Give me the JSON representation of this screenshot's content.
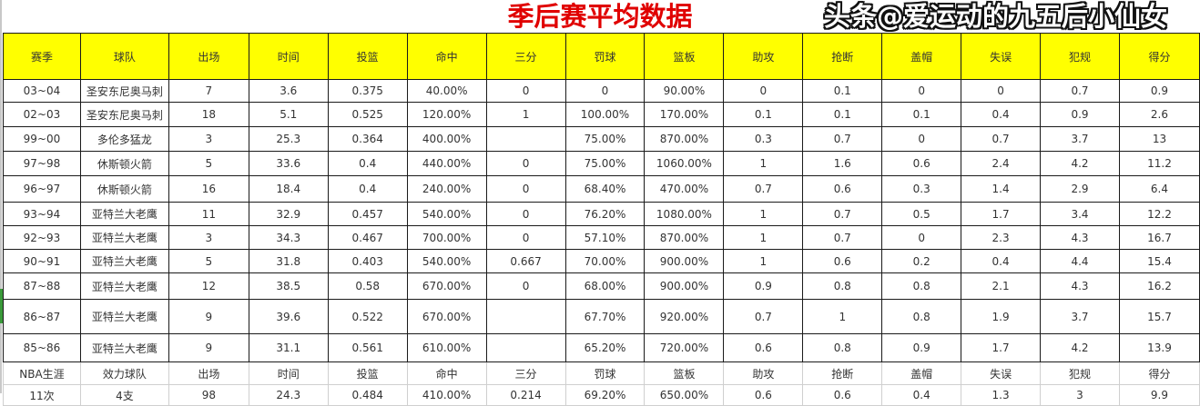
{
  "title": "季后赛平均数据",
  "headers": [
    "赛季",
    "球队",
    "出场",
    "时间",
    "投篮",
    "命中",
    "三分",
    "罚球",
    "篮板",
    "助攻",
    "抢断",
    "盖帽",
    "失误",
    "犯规",
    "得分"
  ],
  "rows": [
    [
      "03~04",
      "圣安东尼奥马刺",
      "7",
      "3.6",
      "0.375",
      "40.00%",
      "0",
      "0",
      "90.00%",
      "0",
      "0.1",
      "0",
      "0",
      "0.7",
      "0.9"
    ],
    [
      "02~03",
      "圣安东尼奥马刺",
      "18",
      "5.1",
      "0.525",
      "120.00%",
      "1",
      "100.00%",
      "170.00%",
      "0.1",
      "0.1",
      "0.1",
      "0.4",
      "0.9",
      "2.6"
    ],
    [
      "99~00",
      "多伦多猛龙",
      "3",
      "25.3",
      "0.364",
      "400.00%",
      "",
      "75.00%",
      "870.00%",
      "0.3",
      "0.7",
      "0",
      "0.7",
      "3.7",
      "13"
    ],
    [
      "97~98",
      "休斯顿火箭",
      "5",
      "33.6",
      "0.4",
      "440.00%",
      "0",
      "75.00%",
      "1060.00%",
      "1",
      "1.6",
      "0.6",
      "2.4",
      "4.2",
      "11.2"
    ],
    [
      "96~97",
      "休斯顿火箭",
      "16",
      "18.4",
      "0.4",
      "240.00%",
      "0",
      "68.40%",
      "470.00%",
      "0.7",
      "0.6",
      "0.3",
      "1.4",
      "2.9",
      "6.4"
    ],
    [
      "93~94",
      "亚特兰大老鹰",
      "11",
      "32.9",
      "0.457",
      "540.00%",
      "0",
      "76.20%",
      "1080.00%",
      "1",
      "0.7",
      "0.5",
      "1.7",
      "3.4",
      "12.2"
    ],
    [
      "92~93",
      "亚特兰大老鹰",
      "3",
      "34.3",
      "0.467",
      "700.00%",
      "0",
      "57.10%",
      "870.00%",
      "1",
      "0.7",
      "0",
      "2.3",
      "4.3",
      "16.7"
    ],
    [
      "90~91",
      "亚特兰大老鹰",
      "5",
      "31.8",
      "0.403",
      "540.00%",
      "0.667",
      "70.00%",
      "900.00%",
      "1",
      "0.6",
      "0.2",
      "0.4",
      "4.4",
      "15.4"
    ],
    [
      "87~88",
      "亚特兰大老鹰",
      "12",
      "38.5",
      "0.58",
      "670.00%",
      "0",
      "68.00%",
      "900.00%",
      "0.9",
      "0.8",
      "0.8",
      "2.1",
      "4.3",
      "16.2"
    ],
    [
      "86~87",
      "亚特兰大老鹰",
      "9",
      "39.6",
      "0.522",
      "670.00%",
      "",
      "67.70%",
      "920.00%",
      "0.7",
      "1",
      "0.8",
      "1.9",
      "3.7",
      "15.7"
    ],
    [
      "85~86",
      "亚特兰大老鹰",
      "9",
      "31.1",
      "0.561",
      "610.00%",
      "",
      "65.20%",
      "720.00%",
      "0.6",
      "0.8",
      "0.9",
      "1.7",
      "4.2",
      "13.9"
    ]
  ],
  "career_headers": [
    "NBA生涯",
    "效力球队",
    "出场",
    "时间",
    "投篮",
    "命中",
    "三分",
    "罚球",
    "篮板",
    "助攻",
    "抢断",
    "盖帽",
    "失误",
    "犯规",
    "得分"
  ],
  "career_row": [
    "11次",
    "4支",
    "98",
    "24.3",
    "0.484",
    "410.00%",
    "0.214",
    "69.20%",
    "650.00%",
    "0.6",
    "0.6",
    "0.4",
    "1.3",
    "3",
    "9.9"
  ],
  "watermark": "头条@爱运动的九五后小仙女",
  "colors": {
    "title": "#e00000",
    "header_bg": "#ffff00"
  }
}
